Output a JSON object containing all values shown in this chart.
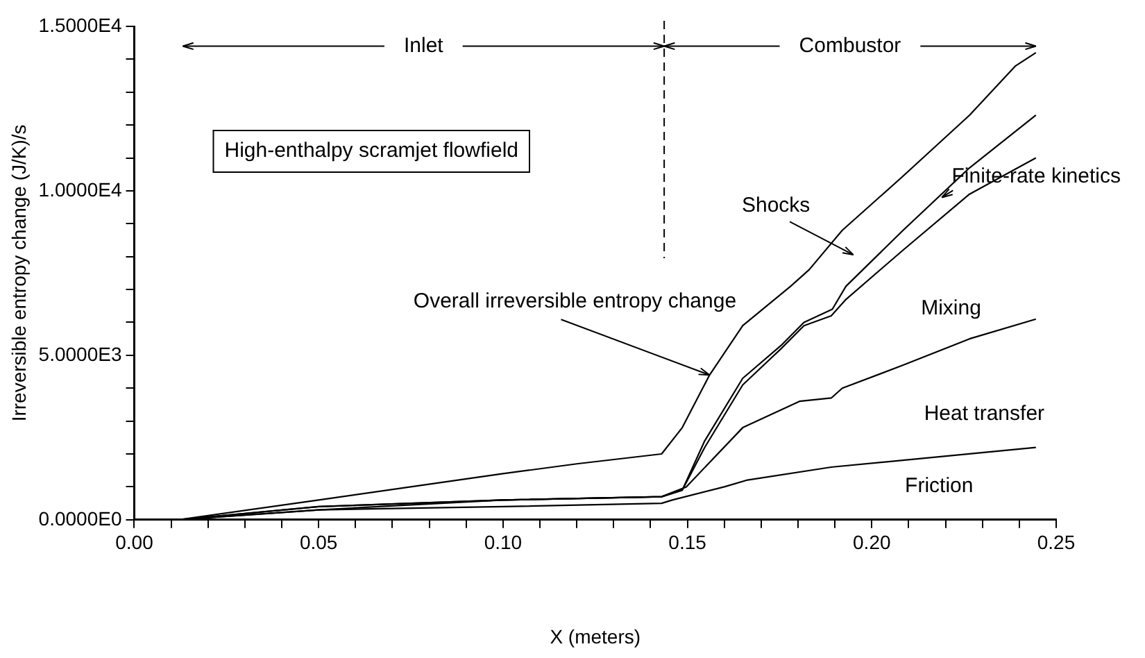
{
  "chart_data": {
    "type": "line",
    "xlabel": "X (meters)",
    "ylabel": "Irreversible entropy change (J/K)/s",
    "xlim": [
      0,
      0.25
    ],
    "ylim": [
      0,
      15000
    ],
    "xticks": [
      {
        "value": 0,
        "label": "0.00"
      },
      {
        "value": 0.01,
        "label": null
      },
      {
        "value": 0.02,
        "label": null
      },
      {
        "value": 0.03,
        "label": null
      },
      {
        "value": 0.04,
        "label": null
      },
      {
        "value": 0.05,
        "label": "0.05"
      },
      {
        "value": 0.06,
        "label": null
      },
      {
        "value": 0.07,
        "label": null
      },
      {
        "value": 0.08,
        "label": null
      },
      {
        "value": 0.09,
        "label": null
      },
      {
        "value": 0.1,
        "label": "0.10"
      },
      {
        "value": 0.11,
        "label": null
      },
      {
        "value": 0.12,
        "label": null
      },
      {
        "value": 0.13,
        "label": null
      },
      {
        "value": 0.14,
        "label": null
      },
      {
        "value": 0.15,
        "label": "0.15"
      },
      {
        "value": 0.16,
        "label": null
      },
      {
        "value": 0.17,
        "label": null
      },
      {
        "value": 0.18,
        "label": null
      },
      {
        "value": 0.19,
        "label": null
      },
      {
        "value": 0.2,
        "label": "0.20"
      },
      {
        "value": 0.21,
        "label": null
      },
      {
        "value": 0.22,
        "label": null
      },
      {
        "value": 0.23,
        "label": null
      },
      {
        "value": 0.24,
        "label": null
      },
      {
        "value": 0.25,
        "label": "0.25"
      }
    ],
    "yticks": [
      {
        "value": 0,
        "label": "0.0000E0"
      },
      {
        "value": 1000,
        "label": null
      },
      {
        "value": 2000,
        "label": null
      },
      {
        "value": 3000,
        "label": null
      },
      {
        "value": 4000,
        "label": null
      },
      {
        "value": 5000,
        "label": "5.0000E3"
      },
      {
        "value": 6000,
        "label": null
      },
      {
        "value": 7000,
        "label": null
      },
      {
        "value": 8000,
        "label": null
      },
      {
        "value": 9000,
        "label": null
      },
      {
        "value": 10000,
        "label": "1.0000E4"
      },
      {
        "value": 11000,
        "label": null
      },
      {
        "value": 12000,
        "label": null
      },
      {
        "value": 13000,
        "label": null
      },
      {
        "value": 14000,
        "label": null
      },
      {
        "value": 15000,
        "label": "1.5000E4"
      }
    ],
    "grid": false,
    "legend": false,
    "marker": "none",
    "line_style": "solid",
    "series": [
      {
        "color": "#000000",
        "x": [
          0.012,
          0.05,
          0.1,
          0.12,
          0.143,
          0.1486,
          0.156,
          0.165,
          0.178,
          0.183,
          0.192,
          0.208,
          0.2265,
          0.239,
          0.2445
        ],
        "values": [
          0,
          600,
          1400,
          1700,
          2000,
          2800,
          4400,
          5900,
          7100,
          7600,
          8800,
          10400,
          12300,
          13800,
          14200
        ]
      },
      {
        "color": "#000000",
        "x": [
          0.012,
          0.05,
          0.1,
          0.143,
          0.1486,
          0.1547,
          0.165,
          0.1754,
          0.1816,
          0.1893,
          0.193,
          0.2085,
          0.2265,
          0.2445
        ],
        "values": [
          0,
          400,
          600,
          700,
          900,
          2400,
          4300,
          5300,
          6000,
          6400,
          7100,
          8800,
          10700,
          12300
        ]
      },
      {
        "color": "#000000",
        "x": [
          0.012,
          0.05,
          0.1,
          0.143,
          0.1486,
          0.1547,
          0.165,
          0.1754,
          0.1816,
          0.189,
          0.193,
          0.2085,
          0.2265,
          0.2445
        ],
        "values": [
          0,
          400,
          600,
          700,
          900,
          2200,
          4100,
          5200,
          5900,
          6200,
          6700,
          8200,
          9900,
          11000
        ]
      },
      {
        "color": "#000000",
        "x": [
          0.012,
          0.05,
          0.1,
          0.143,
          0.1497,
          0.165,
          0.1804,
          0.189,
          0.192,
          0.2085,
          0.2265,
          0.2445
        ],
        "values": [
          0,
          300,
          600,
          700,
          1000,
          2800,
          3600,
          3700,
          4000,
          4700,
          5500,
          6100
        ]
      },
      {
        "color": "#000000",
        "x": [
          0.012,
          0.05,
          0.1,
          0.143,
          0.1459,
          0.16,
          0.166,
          0.189,
          0.2445
        ],
        "values": [
          0,
          300,
          400,
          500,
          600,
          1000,
          1200,
          1600,
          2200
        ]
      }
    ],
    "ref_lines": [
      {
        "axis": "x",
        "value": 0.1437,
        "line_style": "dashed"
      }
    ],
    "annotations": [
      "High-enthalpy scramjet flowfield",
      {
        "text": "Inlet",
        "x": 0.1437,
        "y": 14400
      },
      {
        "text": "Combustor",
        "x": 0.2445,
        "y": 14400
      },
      {
        "text": "Overall irreversible entropy change",
        "x": 0.156,
        "y": 4400
      },
      "Shocks",
      {
        "text": "Finite-rate kinetics",
        "x": 0.219,
        "y": 9800
      },
      "Mixing",
      "Heat transfer",
      "Friction"
    ]
  }
}
